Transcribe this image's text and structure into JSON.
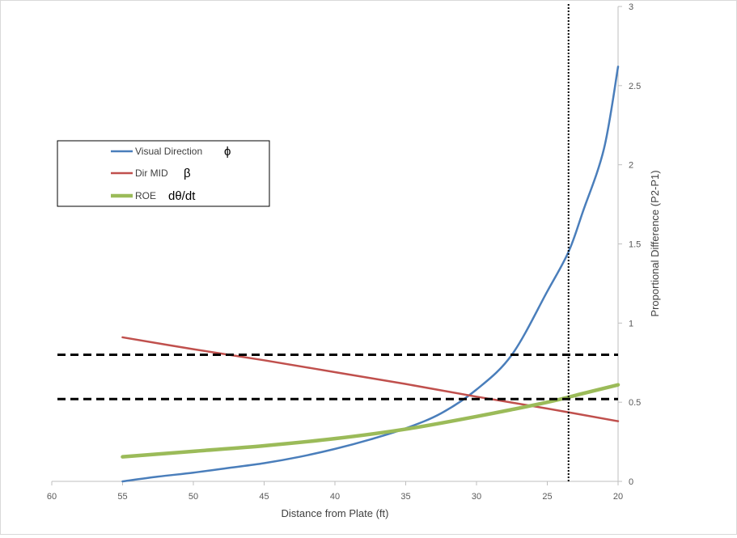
{
  "chart_data": {
    "type": "line",
    "title": "",
    "xlabel": "Distance from Plate (ft)",
    "ylabel": "Proportional  Difference (P2-P1)",
    "xlim": [
      60,
      20
    ],
    "ylim": [
      0,
      3
    ],
    "x_reversed": true,
    "y_axis_position": "right",
    "x_ticks": [
      60,
      55,
      50,
      45,
      40,
      35,
      30,
      25,
      20
    ],
    "x_tick_labels": [
      "60",
      "55",
      "50",
      "45",
      "40",
      "35",
      "30",
      "25",
      "20"
    ],
    "y_ticks": [
      0,
      0.5,
      1,
      1.5,
      2,
      2.5,
      3
    ],
    "y_tick_labels": [
      "0",
      "0.5",
      "1",
      "1.5",
      "2",
      "2.5",
      "3"
    ],
    "grid": false,
    "legend_position": "upper-left",
    "series": [
      {
        "name": "Visual Direction",
        "symbol": "ϕ",
        "color": "#4a7ebb",
        "x": [
          55,
          52.5,
          50,
          47.5,
          45,
          42.5,
          40,
          37.5,
          35,
          32.5,
          30,
          27.5,
          25,
          23.5,
          22.5,
          21,
          20
        ],
        "values": [
          0.0,
          0.03,
          0.055,
          0.085,
          0.115,
          0.155,
          0.205,
          0.265,
          0.335,
          0.43,
          0.58,
          0.8,
          1.2,
          1.45,
          1.7,
          2.1,
          2.62
        ]
      },
      {
        "name": "Dir MID",
        "symbol": "β",
        "color": "#c0504d",
        "x": [
          55,
          50,
          45,
          40,
          35,
          30,
          25,
          20
        ],
        "values": [
          0.91,
          0.835,
          0.765,
          0.69,
          0.615,
          0.535,
          0.46,
          0.38
        ]
      },
      {
        "name": "ROE",
        "symbol": "dθ/dt",
        "color": "#9bbb59",
        "x": [
          55,
          50,
          45,
          40,
          35,
          30,
          25,
          22.5,
          20
        ],
        "values": [
          0.155,
          0.19,
          0.225,
          0.27,
          0.33,
          0.41,
          0.5,
          0.555,
          0.61
        ]
      }
    ],
    "reference_lines": [
      {
        "orientation": "horizontal",
        "value": 0.8,
        "style": "dashed",
        "color": "#000000"
      },
      {
        "orientation": "horizontal",
        "value": 0.52,
        "style": "dashed",
        "color": "#000000"
      },
      {
        "orientation": "vertical",
        "value": 23.5,
        "style": "dotted",
        "color": "#000000"
      }
    ]
  }
}
